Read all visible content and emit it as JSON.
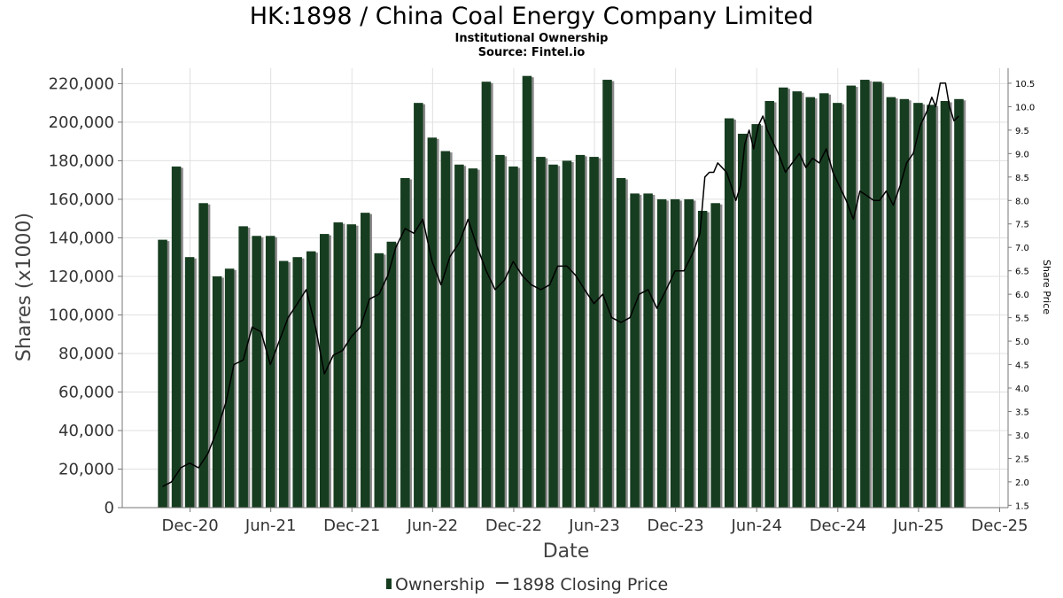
{
  "colors": {
    "bar": "#173d20",
    "bar_shadow": "#8a8a8a",
    "line": "#000000",
    "grid": "#e0e0e0",
    "axis": "#777777"
  },
  "chart_data": {
    "type": "bar",
    "title": "HK:1898 / China Coal Energy Company Limited",
    "subtitle": "Institutional Ownership",
    "source": "Source: Fintel.io",
    "xlabel": "Date",
    "ylabel": "Shares (x1000)",
    "y2label": "Share Price",
    "ylim": [
      0,
      228000
    ],
    "y2lim": [
      1.45,
      10.82
    ],
    "xlim": [
      "2020-07-01",
      "2025-12-20"
    ],
    "yticks": [
      0,
      20000,
      40000,
      60000,
      80000,
      100000,
      120000,
      140000,
      160000,
      180000,
      200000,
      220000
    ],
    "ytick_labels": [
      "0",
      "20,000",
      "40,000",
      "60,000",
      "80,000",
      "100,000",
      "120,000",
      "140,000",
      "160,000",
      "180,000",
      "200,000",
      "220,000"
    ],
    "y2ticks": [
      1.5,
      2.0,
      2.5,
      3.0,
      3.5,
      4.0,
      4.5,
      5.0,
      5.5,
      6.0,
      6.5,
      7.0,
      7.5,
      8.0,
      8.5,
      9.0,
      9.5,
      10.0,
      10.5
    ],
    "y2tick_labels": [
      "1.5",
      "2.0",
      "2.5",
      "3.0",
      "3.5",
      "4.0",
      "4.5",
      "5.0",
      "5.5",
      "6.0",
      "6.5",
      "7.0",
      "7.5",
      "8.0",
      "8.5",
      "9.0",
      "9.5",
      "10.0",
      "10.5"
    ],
    "xticks": [
      {
        "label": "Dec-20",
        "date": "2020-12-01"
      },
      {
        "label": "Jun-21",
        "date": "2021-06-01"
      },
      {
        "label": "Dec-21",
        "date": "2021-12-01"
      },
      {
        "label": "Jun-22",
        "date": "2022-06-01"
      },
      {
        "label": "Dec-22",
        "date": "2022-12-01"
      },
      {
        "label": "Jun-23",
        "date": "2023-06-01"
      },
      {
        "label": "Dec-23",
        "date": "2023-12-01"
      },
      {
        "label": "Jun-24",
        "date": "2024-06-01"
      },
      {
        "label": "Dec-24",
        "date": "2024-12-01"
      },
      {
        "label": "Jun-25",
        "date": "2025-06-01"
      },
      {
        "label": "Dec-25",
        "date": "2025-12-01"
      }
    ],
    "grid": true,
    "legend_position": "bottom-center",
    "series": [
      {
        "name": "Ownership",
        "type": "bar",
        "axis": "left",
        "dates": [
          "2020-09-30",
          "2020-10-31",
          "2020-11-30",
          "2020-12-31",
          "2021-01-31",
          "2021-02-28",
          "2021-03-31",
          "2021-04-30",
          "2021-05-31",
          "2021-06-30",
          "2021-07-31",
          "2021-08-31",
          "2021-09-30",
          "2021-10-31",
          "2021-11-30",
          "2021-12-31",
          "2022-01-31",
          "2022-02-28",
          "2022-03-31",
          "2022-04-30",
          "2022-05-31",
          "2022-06-30",
          "2022-07-31",
          "2022-08-31",
          "2022-09-30",
          "2022-10-31",
          "2022-11-30",
          "2022-12-31",
          "2023-01-31",
          "2023-02-28",
          "2023-03-31",
          "2023-04-30",
          "2023-05-31",
          "2023-06-30",
          "2023-07-31",
          "2023-08-31",
          "2023-09-30",
          "2023-10-31",
          "2023-11-30",
          "2023-12-31",
          "2024-01-31",
          "2024-02-29",
          "2024-03-31",
          "2024-04-30",
          "2024-05-31",
          "2024-06-30",
          "2024-07-31",
          "2024-08-31",
          "2024-09-30",
          "2024-10-31",
          "2024-11-30",
          "2024-12-31",
          "2025-01-31",
          "2025-02-28",
          "2025-03-31",
          "2025-04-30",
          "2025-05-31",
          "2025-06-30",
          "2025-07-31",
          "2025-08-31"
        ],
        "values": [
          139000,
          177000,
          130000,
          158000,
          120000,
          124000,
          146000,
          141000,
          141000,
          128000,
          130000,
          133000,
          142000,
          148000,
          147000,
          153000,
          132000,
          138000,
          171000,
          210000,
          192000,
          185000,
          178000,
          176000,
          221000,
          183000,
          177000,
          224000,
          182000,
          178000,
          180000,
          183000,
          182000,
          222000,
          171000,
          163000,
          163000,
          160000,
          160000,
          160000,
          154000,
          158000,
          202000,
          194000,
          199000,
          211000,
          218000,
          216000,
          213000,
          215000,
          210000,
          219000,
          222000,
          221000,
          213000,
          212000,
          210000,
          209000,
          211000,
          212000
        ]
      },
      {
        "name": "1898 Closing Price",
        "type": "line",
        "axis": "right",
        "dates": [
          "2020-09-30",
          "2020-10-20",
          "2020-11-10",
          "2020-11-30",
          "2020-12-20",
          "2021-01-10",
          "2021-01-31",
          "2021-02-20",
          "2021-03-10",
          "2021-03-31",
          "2021-04-20",
          "2021-05-10",
          "2021-05-31",
          "2021-06-20",
          "2021-07-10",
          "2021-07-31",
          "2021-08-20",
          "2021-09-10",
          "2021-09-30",
          "2021-10-20",
          "2021-11-10",
          "2021-11-30",
          "2021-12-20",
          "2022-01-10",
          "2022-01-31",
          "2022-02-20",
          "2022-03-10",
          "2022-03-31",
          "2022-04-20",
          "2022-05-10",
          "2022-05-31",
          "2022-06-20",
          "2022-07-10",
          "2022-07-31",
          "2022-08-20",
          "2022-09-10",
          "2022-09-30",
          "2022-10-20",
          "2022-11-10",
          "2022-11-30",
          "2022-12-20",
          "2023-01-10",
          "2023-01-31",
          "2023-02-20",
          "2023-03-10",
          "2023-03-31",
          "2023-04-20",
          "2023-05-10",
          "2023-05-31",
          "2023-06-20",
          "2023-07-10",
          "2023-07-31",
          "2023-08-20",
          "2023-09-10",
          "2023-09-30",
          "2023-10-20",
          "2023-11-10",
          "2023-11-30",
          "2023-12-20",
          "2024-01-10",
          "2024-01-25",
          "2024-02-05",
          "2024-02-15",
          "2024-02-25",
          "2024-03-05",
          "2024-03-15",
          "2024-03-25",
          "2024-04-05",
          "2024-04-15",
          "2024-04-25",
          "2024-05-05",
          "2024-05-15",
          "2024-05-25",
          "2024-06-05",
          "2024-06-15",
          "2024-06-25",
          "2024-07-05",
          "2024-07-20",
          "2024-08-05",
          "2024-08-20",
          "2024-09-05",
          "2024-09-20",
          "2024-10-05",
          "2024-10-20",
          "2024-11-05",
          "2024-11-20",
          "2024-12-05",
          "2024-12-20",
          "2025-01-05",
          "2025-01-20",
          "2025-02-05",
          "2025-02-20",
          "2025-03-05",
          "2025-03-20",
          "2025-04-05",
          "2025-04-20",
          "2025-05-05",
          "2025-05-20",
          "2025-06-05",
          "2025-06-20",
          "2025-07-01",
          "2025-07-10",
          "2025-07-20",
          "2025-08-01",
          "2025-08-10",
          "2025-08-20",
          "2025-08-31"
        ],
        "values": [
          1.9,
          2.0,
          2.3,
          2.4,
          2.3,
          2.6,
          3.1,
          3.7,
          4.5,
          4.6,
          5.3,
          5.2,
          4.5,
          5.0,
          5.5,
          5.8,
          6.1,
          5.3,
          4.3,
          4.7,
          4.8,
          5.1,
          5.3,
          5.9,
          6.0,
          6.4,
          7.0,
          7.4,
          7.3,
          7.6,
          6.7,
          6.2,
          6.8,
          7.1,
          7.6,
          7.0,
          6.5,
          6.1,
          6.3,
          6.7,
          6.4,
          6.2,
          6.1,
          6.2,
          6.6,
          6.6,
          6.4,
          6.1,
          5.8,
          6.0,
          5.5,
          5.4,
          5.5,
          6.0,
          6.1,
          5.7,
          6.1,
          6.5,
          6.5,
          6.9,
          7.3,
          8.5,
          8.6,
          8.6,
          8.8,
          8.7,
          8.6,
          8.3,
          8.0,
          8.3,
          9.2,
          9.5,
          9.1,
          9.6,
          9.8,
          9.5,
          9.3,
          9.0,
          8.6,
          8.8,
          9.0,
          8.7,
          8.9,
          8.8,
          9.1,
          8.6,
          8.3,
          8.0,
          7.6,
          8.2,
          8.1,
          8.0,
          8.0,
          8.2,
          7.9,
          8.3,
          8.8,
          9.0,
          9.6,
          9.9,
          10.2,
          10.0,
          10.5,
          10.5,
          10.0,
          9.7,
          9.8
        ]
      }
    ]
  }
}
